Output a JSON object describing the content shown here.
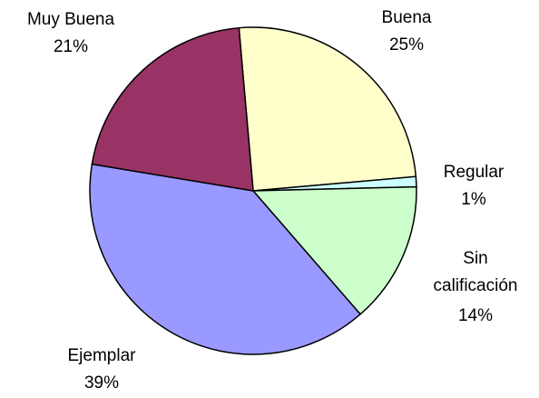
{
  "chart_data": {
    "type": "pie",
    "categories": [
      "Buena",
      "Regular",
      "Sin calificación",
      "Ejemplar",
      "Muy Buena"
    ],
    "values": [
      25,
      1,
      14,
      39,
      21
    ],
    "value_labels": [
      "25%",
      "1%",
      "14%",
      "39%",
      "21%"
    ],
    "colors": [
      "#ffffcc",
      "#ccffff",
      "#ccffcc",
      "#9999ff",
      "#993366"
    ]
  }
}
